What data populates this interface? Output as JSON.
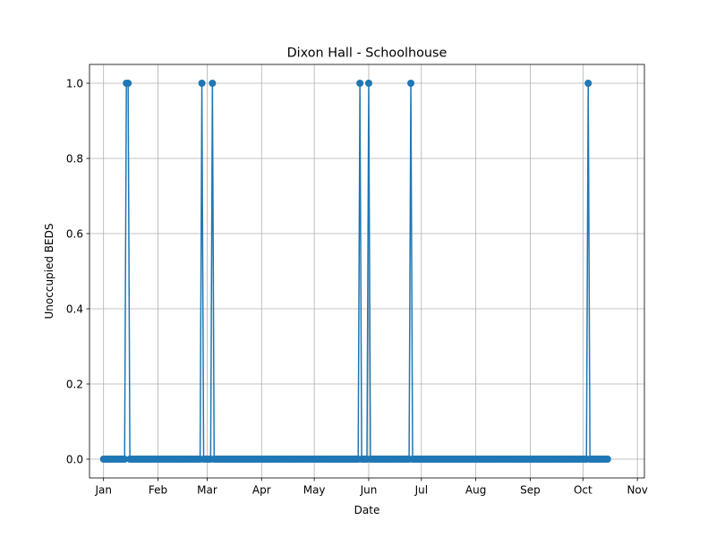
{
  "chart_data": {
    "type": "line",
    "title": "Dixon Hall - Schoolhouse",
    "xlabel": "Date",
    "ylabel": "Unoccupied BEDS",
    "x_ticks": [
      "Jan",
      "Feb",
      "Mar",
      "Apr",
      "May",
      "Jun",
      "Jul",
      "Aug",
      "Sep",
      "Oct",
      "Nov"
    ],
    "y_ticks": [
      "0.0",
      "0.2",
      "0.4",
      "0.6",
      "0.8",
      "1.0"
    ],
    "ylim": [
      -0.05,
      1.05
    ],
    "xlim": [
      "2020-12-24",
      "2021-11-05"
    ],
    "grid": true,
    "marker": "circle",
    "line_color": "#1f77b4",
    "series": [
      {
        "start": "2021-01-01",
        "end": "2021-10-15",
        "step_days": 1,
        "baseline": 0,
        "ones": [
          "2021-01-14",
          "2021-01-15",
          "2021-02-26",
          "2021-03-04",
          "2021-05-27",
          "2021-06-01",
          "2021-06-25",
          "2021-10-04"
        ]
      }
    ]
  }
}
